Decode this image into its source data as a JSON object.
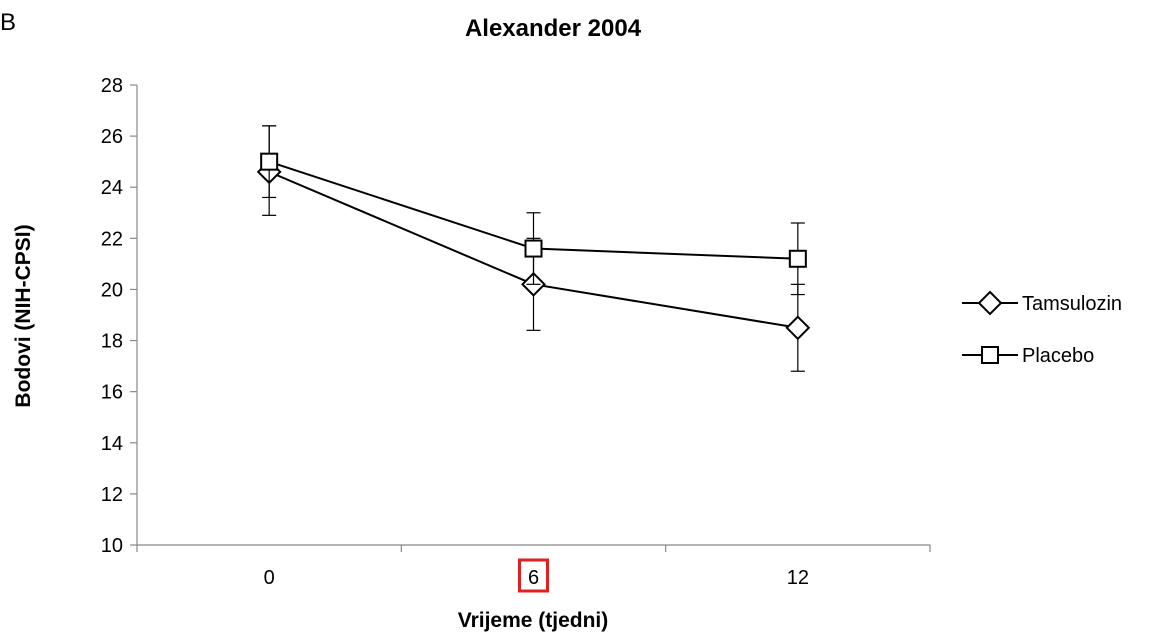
{
  "panel_label": "B",
  "chart_data": {
    "type": "line",
    "title": "Alexander 2004",
    "xlabel": "Vrijeme (tjedni)",
    "ylabel": "Bodovi (NIH-CPSI)",
    "categories": [
      "0",
      "6",
      "12"
    ],
    "ylim": [
      10,
      28
    ],
    "yticks": [
      10,
      12,
      14,
      16,
      18,
      20,
      22,
      24,
      26,
      28
    ],
    "grid": false,
    "legend_position": "right",
    "highlighted_tick": "6",
    "highlight_color": "#e02020",
    "series": [
      {
        "name": "Tamsulozin",
        "marker": "diamond",
        "values": [
          24.6,
          20.2,
          18.5
        ],
        "error_low": [
          22.9,
          18.4,
          16.8
        ],
        "error_high": [
          26.4,
          22.0,
          20.2
        ]
      },
      {
        "name": "Placebo",
        "marker": "square",
        "values": [
          25.0,
          21.6,
          21.2
        ],
        "error_low": [
          23.6,
          20.2,
          19.8
        ],
        "error_high": [
          26.4,
          23.0,
          22.6
        ]
      }
    ]
  }
}
